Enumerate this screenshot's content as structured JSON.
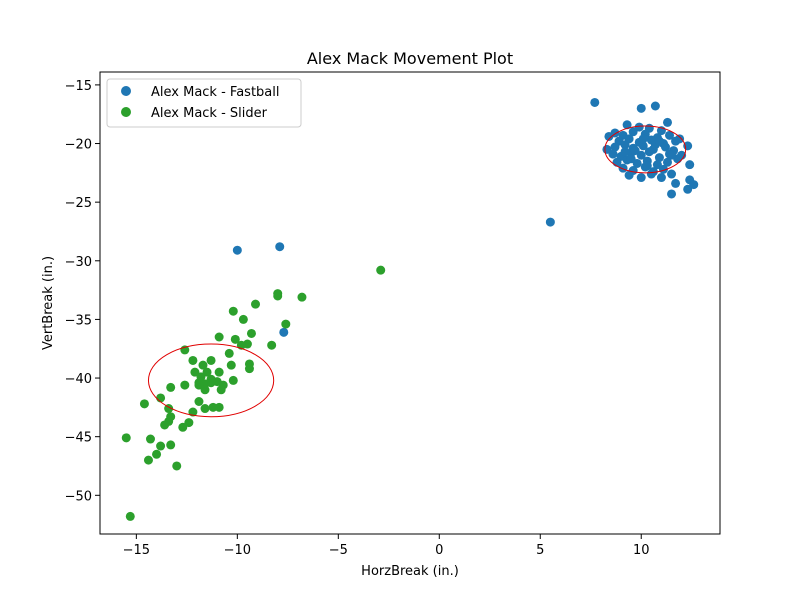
{
  "chart_data": {
    "type": "scatter",
    "title": "Alex Mack Movement Plot",
    "xlabel": "HorzBreak (in.)",
    "ylabel": "VertBreak (in.)",
    "xlim": [
      -16.8,
      13.9
    ],
    "ylim": [
      -53.3,
      -13.9
    ],
    "xticks": [
      -15,
      -10,
      -5,
      0,
      5,
      10
    ],
    "yticks": [
      -15,
      -20,
      -25,
      -30,
      -35,
      -40,
      -45,
      -50
    ],
    "grid": false,
    "legend_position": "top-left",
    "ellipse_color": "#e00000",
    "series": [
      {
        "name": "Alex Mack - Fastball",
        "color": "#1f77b4",
        "points": [
          [
            7.7,
            -16.5
          ],
          [
            10.0,
            -17.0
          ],
          [
            10.7,
            -16.8
          ],
          [
            11.3,
            -18.2
          ],
          [
            9.3,
            -18.4
          ],
          [
            9.9,
            -18.6
          ],
          [
            10.4,
            -18.7
          ],
          [
            11.0,
            -18.9
          ],
          [
            8.4,
            -19.4
          ],
          [
            8.7,
            -19.1
          ],
          [
            9.1,
            -19.3
          ],
          [
            9.6,
            -19.0
          ],
          [
            10.2,
            -19.2
          ],
          [
            10.8,
            -19.5
          ],
          [
            11.4,
            -19.3
          ],
          [
            11.7,
            -19.8
          ],
          [
            8.9,
            -19.8
          ],
          [
            9.4,
            -19.6
          ],
          [
            9.9,
            -19.9
          ],
          [
            10.5,
            -19.7
          ],
          [
            11.1,
            -20.0
          ],
          [
            11.9,
            -19.6
          ],
          [
            12.3,
            -20.2
          ],
          [
            8.3,
            -20.5
          ],
          [
            8.7,
            -20.3
          ],
          [
            9.2,
            -20.1
          ],
          [
            9.6,
            -20.4
          ],
          [
            10.1,
            -20.2
          ],
          [
            10.6,
            -20.5
          ],
          [
            11.2,
            -20.3
          ],
          [
            11.6,
            -20.6
          ],
          [
            8.6,
            -20.9
          ],
          [
            9.0,
            -21.1
          ],
          [
            9.5,
            -20.8
          ],
          [
            10.0,
            -21.0
          ],
          [
            10.4,
            -20.7
          ],
          [
            10.9,
            -21.2
          ],
          [
            11.4,
            -20.9
          ],
          [
            12.0,
            -21.0
          ],
          [
            8.8,
            -21.6
          ],
          [
            9.3,
            -21.4
          ],
          [
            9.8,
            -21.7
          ],
          [
            10.3,
            -21.5
          ],
          [
            10.8,
            -21.8
          ],
          [
            11.3,
            -21.6
          ],
          [
            11.8,
            -21.3
          ],
          [
            12.4,
            -21.8
          ],
          [
            9.1,
            -22.1
          ],
          [
            9.6,
            -22.3
          ],
          [
            10.2,
            -22.0
          ],
          [
            10.6,
            -22.4
          ],
          [
            11.1,
            -22.2
          ],
          [
            11.5,
            -22.6
          ],
          [
            9.4,
            -22.7
          ],
          [
            10.0,
            -22.9
          ],
          [
            10.5,
            -22.6
          ],
          [
            11.0,
            -22.9
          ],
          [
            11.7,
            -23.4
          ],
          [
            12.4,
            -23.1
          ],
          [
            12.6,
            -23.5
          ],
          [
            12.3,
            -23.9
          ],
          [
            11.5,
            -24.3
          ],
          [
            9.7,
            -20.6
          ],
          [
            10.7,
            -20.1
          ],
          [
            10.3,
            -21.9
          ],
          [
            9.2,
            -20.7
          ],
          [
            11.5,
            -21.0
          ],
          [
            10.1,
            -19.6
          ],
          [
            9.5,
            -21.3
          ],
          [
            10.9,
            -19.8
          ],
          [
            -10.0,
            -29.1
          ],
          [
            -7.9,
            -28.8
          ],
          [
            -7.7,
            -36.1
          ],
          [
            5.5,
            -26.7
          ]
        ]
      },
      {
        "name": "Alex Mack - Slider",
        "color": "#2ca02c",
        "points": [
          [
            -2.9,
            -30.8
          ],
          [
            -8.0,
            -32.8
          ],
          [
            -8.0,
            -33.0
          ],
          [
            -6.8,
            -33.1
          ],
          [
            -9.1,
            -33.7
          ],
          [
            -10.2,
            -34.3
          ],
          [
            -9.7,
            -35.0
          ],
          [
            -7.6,
            -35.4
          ],
          [
            -9.3,
            -36.2
          ],
          [
            -10.1,
            -36.7
          ],
          [
            -10.9,
            -36.5
          ],
          [
            -9.5,
            -37.1
          ],
          [
            -9.8,
            -37.2
          ],
          [
            -8.3,
            -37.2
          ],
          [
            -12.6,
            -37.6
          ],
          [
            -10.4,
            -37.9
          ],
          [
            -11.3,
            -38.5
          ],
          [
            -12.2,
            -38.5
          ],
          [
            -10.3,
            -38.9
          ],
          [
            -11.7,
            -38.9
          ],
          [
            -9.4,
            -38.8
          ],
          [
            -9.4,
            -39.2
          ],
          [
            -12.1,
            -39.5
          ],
          [
            -11.5,
            -39.5
          ],
          [
            -10.9,
            -39.5
          ],
          [
            -11.8,
            -39.9
          ],
          [
            -11.3,
            -40.1
          ],
          [
            -11.9,
            -40.4
          ],
          [
            -11.6,
            -40.5
          ],
          [
            -11.9,
            -40.6
          ],
          [
            -11.3,
            -40.4
          ],
          [
            -10.7,
            -40.6
          ],
          [
            -10.2,
            -40.2
          ],
          [
            -11.0,
            -40.3
          ],
          [
            -12.6,
            -40.6
          ],
          [
            -13.3,
            -40.8
          ],
          [
            -11.6,
            -41.0
          ],
          [
            -10.8,
            -41.0
          ],
          [
            -13.8,
            -41.7
          ],
          [
            -11.9,
            -42.0
          ],
          [
            -12.2,
            -42.9
          ],
          [
            -13.4,
            -42.6
          ],
          [
            -11.6,
            -42.6
          ],
          [
            -11.2,
            -42.5
          ],
          [
            -10.9,
            -42.5
          ],
          [
            -14.6,
            -42.2
          ],
          [
            -13.3,
            -43.3
          ],
          [
            -13.4,
            -43.7
          ],
          [
            -12.4,
            -43.8
          ],
          [
            -12.7,
            -44.2
          ],
          [
            -13.6,
            -44.0
          ],
          [
            -15.5,
            -45.1
          ],
          [
            -14.3,
            -45.2
          ],
          [
            -13.8,
            -45.8
          ],
          [
            -13.3,
            -45.7
          ],
          [
            -14.0,
            -46.5
          ],
          [
            -14.4,
            -47.0
          ],
          [
            -13.0,
            -47.5
          ],
          [
            -15.3,
            -51.8
          ]
        ]
      }
    ],
    "ellipses": [
      {
        "center": [
          10.2,
          -20.5
        ],
        "rx": 2.0,
        "ry": 2.0
      },
      {
        "center": [
          -11.3,
          -40.2
        ],
        "rx": 3.1,
        "ry": 3.1
      }
    ]
  }
}
